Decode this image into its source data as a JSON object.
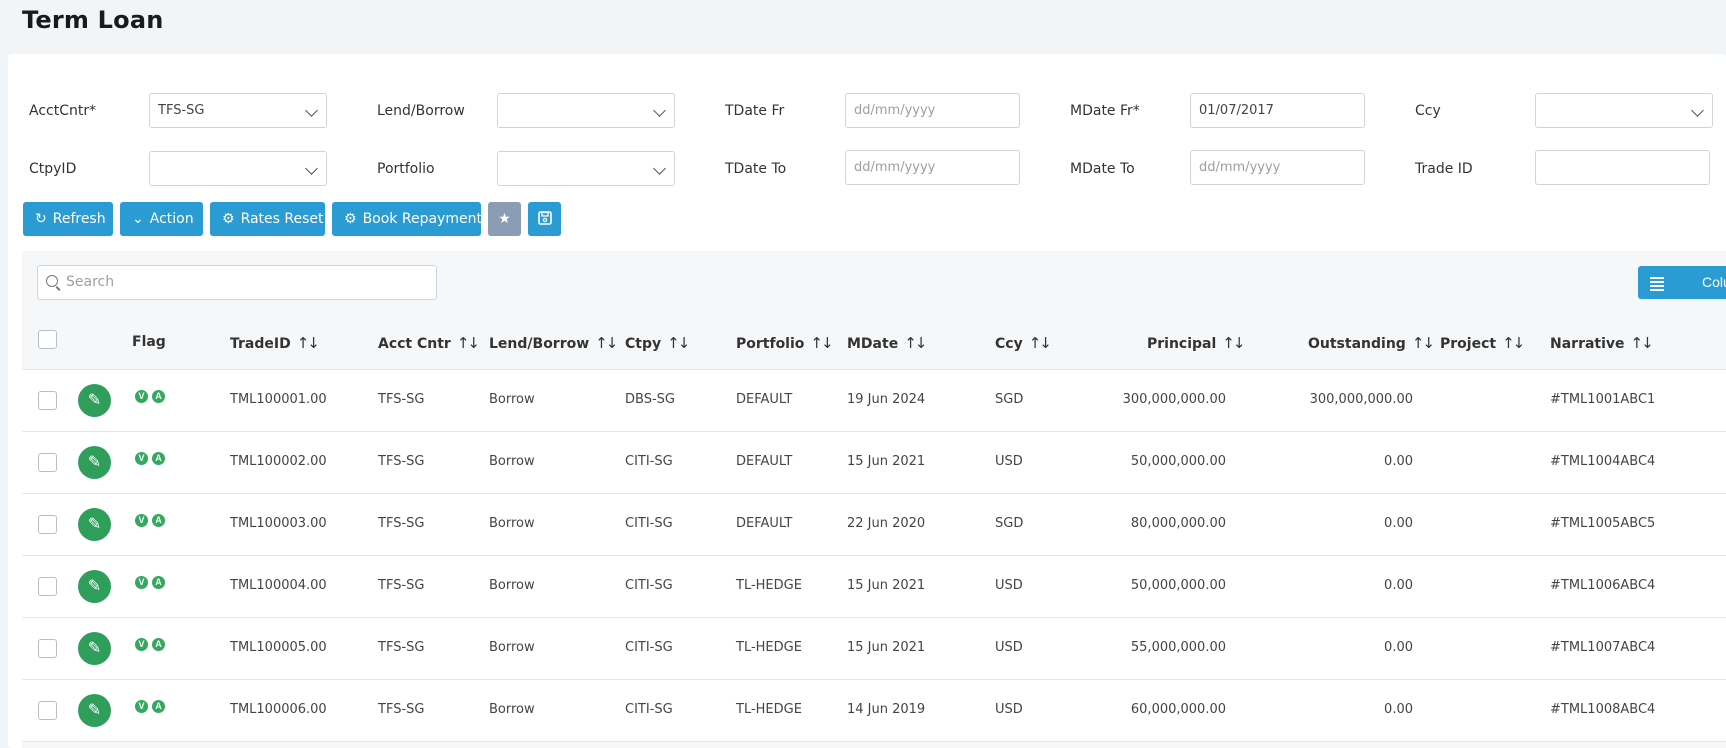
{
  "page_title": "Term Loan",
  "filters": {
    "acctcntr": {
      "label": "AcctCntr*",
      "value": "TFS-SG"
    },
    "lend_borrow": {
      "label": "Lend/Borrow",
      "value": ""
    },
    "tdate_fr": {
      "label": "TDate Fr",
      "placeholder": "dd/mm/yyyy"
    },
    "mdate_fr": {
      "label": "MDate Fr*",
      "value": "01/07/2017"
    },
    "ccy": {
      "label": "Ccy",
      "value": ""
    },
    "ctpyid": {
      "label": "CtpyID",
      "value": ""
    },
    "portfolio": {
      "label": "Portfolio",
      "value": ""
    },
    "tdate_to": {
      "label": "TDate To",
      "placeholder": "dd/mm/yyyy"
    },
    "mdate_to": {
      "label": "MDate To",
      "placeholder": "dd/mm/yyyy"
    },
    "trade_id": {
      "label": "Trade ID",
      "value": ""
    }
  },
  "toolbar": {
    "refresh": "Refresh",
    "action": "Action",
    "rates_reset": "Rates Reset",
    "book_repayment": "Book Repayment"
  },
  "search": {
    "placeholder": "Search"
  },
  "columns_button": "Columns",
  "table": {
    "headers": {
      "flag": "Flag",
      "tradeid": "TradeID",
      "acct_cntr": "Acct Cntr",
      "lend_borrow": "Lend/Borrow",
      "ctpy": "Ctpy",
      "portfolio": "Portfolio",
      "mdate": "MDate",
      "ccy": "Ccy",
      "principal": "Principal",
      "outstanding": "Outstanding",
      "project": "Project",
      "narrative": "Narrative"
    },
    "rows": [
      {
        "tradeid": "TML100001.00",
        "acct_cntr": "TFS-SG",
        "lend_borrow": "Borrow",
        "ctpy": "DBS-SG",
        "portfolio": "DEFAULT",
        "mdate": "19 Jun 2024",
        "ccy": "SGD",
        "principal": "300,000,000.00",
        "outstanding": "300,000,000.00",
        "project": "",
        "narrative": "#TML1001ABC1"
      },
      {
        "tradeid": "TML100002.00",
        "acct_cntr": "TFS-SG",
        "lend_borrow": "Borrow",
        "ctpy": "CITI-SG",
        "portfolio": "DEFAULT",
        "mdate": "15 Jun 2021",
        "ccy": "USD",
        "principal": "50,000,000.00",
        "outstanding": "0.00",
        "project": "",
        "narrative": "#TML1004ABC4"
      },
      {
        "tradeid": "TML100003.00",
        "acct_cntr": "TFS-SG",
        "lend_borrow": "Borrow",
        "ctpy": "CITI-SG",
        "portfolio": "DEFAULT",
        "mdate": "22 Jun 2020",
        "ccy": "SGD",
        "principal": "80,000,000.00",
        "outstanding": "0.00",
        "project": "",
        "narrative": "#TML1005ABC5"
      },
      {
        "tradeid": "TML100004.00",
        "acct_cntr": "TFS-SG",
        "lend_borrow": "Borrow",
        "ctpy": "CITI-SG",
        "portfolio": "TL-HEDGE",
        "mdate": "15 Jun 2021",
        "ccy": "USD",
        "principal": "50,000,000.00",
        "outstanding": "0.00",
        "project": "",
        "narrative": "#TML1006ABC4"
      },
      {
        "tradeid": "TML100005.00",
        "acct_cntr": "TFS-SG",
        "lend_borrow": "Borrow",
        "ctpy": "CITI-SG",
        "portfolio": "TL-HEDGE",
        "mdate": "15 Jun 2021",
        "ccy": "USD",
        "principal": "55,000,000.00",
        "outstanding": "0.00",
        "project": "",
        "narrative": "#TML1007ABC4"
      },
      {
        "tradeid": "TML100006.00",
        "acct_cntr": "TFS-SG",
        "lend_borrow": "Borrow",
        "ctpy": "CITI-SG",
        "portfolio": "TL-HEDGE",
        "mdate": "14 Jun 2019",
        "ccy": "USD",
        "principal": "60,000,000.00",
        "outstanding": "0.00",
        "project": "",
        "narrative": "#TML1008ABC4"
      }
    ],
    "flag_letters": [
      "V",
      "A"
    ]
  },
  "colors": {
    "accent": "#2b9bd3",
    "edit_green": "#2f9e5b",
    "muted_button": "#8a9db5"
  },
  "icons": {
    "refresh": "refresh-icon",
    "action": "chevron-down-icon",
    "rates_reset": "gear-icon",
    "book_repayment": "gear-icon",
    "favorite": "star-icon",
    "save": "save-icon",
    "search": "search-icon",
    "columns": "list-icon",
    "edit": "pencil-icon"
  }
}
